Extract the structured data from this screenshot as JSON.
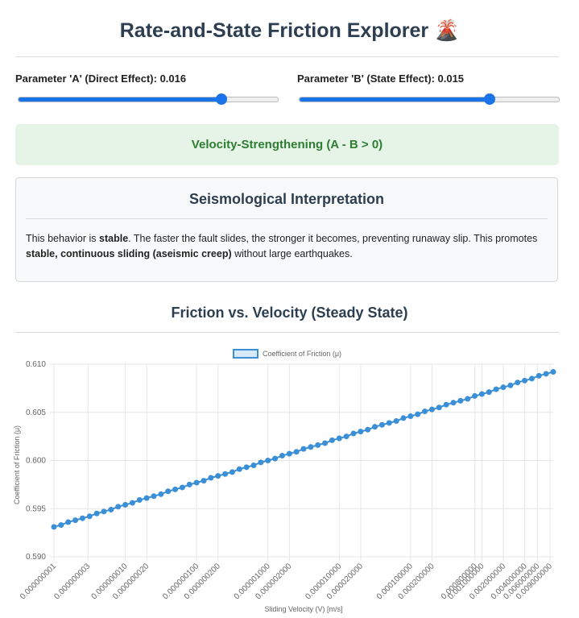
{
  "header": {
    "title": "Rate-and-State Friction Explorer 🌋"
  },
  "controls": [
    {
      "label": "Parameter 'A' (Direct Effect): 0.016"
    },
    {
      "label": "Parameter 'B' (State Effect): 0.015"
    }
  ],
  "regime": {
    "label": "Velocity-Strengthening (A - B > 0)"
  },
  "interpretation": {
    "heading": "Seismological Interpretation",
    "paragraph": [
      "This behavior is ",
      "stable",
      ". The faster the fault slides, the stronger it becomes, preventing runaway slip. This promotes ",
      "stable, continuous sliding (aseismic creep)",
      " without large earthquakes."
    ]
  },
  "chart_data": {
    "type": "line",
    "title": "Friction vs. Velocity (Steady State)",
    "x_label": "Sliding Velocity (V) [m/s]",
    "y_label": "Coefficient of Friction (μ)",
    "x_log": true,
    "grid": true,
    "legend": "top",
    "x": [
      1e-09,
      1.259e-09,
      1.585e-09,
      1.995e-09,
      2.512e-09,
      3.162e-09,
      3.981e-09,
      5.012e-09,
      6.31e-09,
      7.943e-09,
      1e-08,
      1.259e-08,
      1.585e-08,
      1.995e-08,
      2.512e-08,
      3.162e-08,
      3.981e-08,
      5.012e-08,
      6.31e-08,
      7.943e-08,
      1e-07,
      1.259e-07,
      1.585e-07,
      1.995e-07,
      2.512e-07,
      3.162e-07,
      3.981e-07,
      5.012e-07,
      6.31e-07,
      7.943e-07,
      1e-06,
      1.259e-06,
      1.585e-06,
      1.995e-06,
      2.512e-06,
      3.162e-06,
      3.981e-06,
      5.012e-06,
      6.31e-06,
      7.943e-06,
      1e-05,
      1.259e-05,
      1.585e-05,
      1.995e-05,
      2.512e-05,
      3.162e-05,
      3.981e-05,
      5.012e-05,
      6.31e-05,
      7.943e-05,
      0.0001,
      0.0001259,
      0.0001585,
      0.0001995,
      0.0002512,
      0.0003162,
      0.0003981,
      0.0005012,
      0.000631,
      0.0007943,
      0.001,
      0.001259,
      0.001585,
      0.001995,
      0.002512,
      0.003162,
      0.003981,
      0.005012,
      0.00631,
      0.007943,
      0.01
    ],
    "series": [
      {
        "name": "Coefficient of Friction (μ)",
        "color": "#3b8fd6",
        "values": [
          0.5931,
          0.5933,
          0.5936,
          0.5938,
          0.594,
          0.5942,
          0.5945,
          0.5947,
          0.5949,
          0.5952,
          0.5954,
          0.5956,
          0.5959,
          0.5961,
          0.5963,
          0.5965,
          0.5968,
          0.597,
          0.5972,
          0.5975,
          0.5977,
          0.5979,
          0.5982,
          0.5984,
          0.5986,
          0.5988,
          0.5991,
          0.5993,
          0.5995,
          0.5998,
          0.6,
          0.6002,
          0.6005,
          0.6007,
          0.6009,
          0.6012,
          0.6014,
          0.6016,
          0.6018,
          0.6021,
          0.6023,
          0.6025,
          0.6028,
          0.603,
          0.6032,
          0.6035,
          0.6037,
          0.6039,
          0.6041,
          0.6044,
          0.6046,
          0.6048,
          0.6051,
          0.6053,
          0.6055,
          0.6058,
          0.606,
          0.6062,
          0.6064,
          0.6067,
          0.6069,
          0.6071,
          0.6074,
          0.6076,
          0.6078,
          0.6081,
          0.6083,
          0.6085,
          0.6088,
          0.609,
          0.6092
        ]
      }
    ],
    "xlim": [
      1e-09,
      0.01
    ],
    "xticks": [
      {
        "value": 1e-09,
        "label": "0.000000001"
      },
      {
        "value": 3e-09,
        "label": "0.000000003"
      },
      {
        "value": 1e-08,
        "label": "0.000000010"
      },
      {
        "value": 2e-08,
        "label": "0.000000020"
      },
      {
        "value": 1e-07,
        "label": "0.000000100"
      },
      {
        "value": 2e-07,
        "label": "0.000000200"
      },
      {
        "value": 1e-06,
        "label": "0.000001000"
      },
      {
        "value": 2e-06,
        "label": "0.000002000"
      },
      {
        "value": 1e-05,
        "label": "0.000010000"
      },
      {
        "value": 2e-05,
        "label": "0.000020000"
      },
      {
        "value": 0.0001,
        "label": "0.000100000"
      },
      {
        "value": 0.0002,
        "label": "0.000200000"
      },
      {
        "value": 0.0008,
        "label": "0.000800000"
      },
      {
        "value": 0.001,
        "label": "0.001000000"
      },
      {
        "value": 0.002,
        "label": "0.002000000"
      },
      {
        "value": 0.004,
        "label": "0.004000000"
      },
      {
        "value": 0.006,
        "label": "0.006000000"
      },
      {
        "value": 0.009,
        "label": "0.009000000"
      }
    ],
    "ylim": [
      0.59,
      0.61
    ],
    "yticks": [
      {
        "value": 0.59,
        "label": "0.590"
      },
      {
        "value": 0.595,
        "label": "0.595"
      },
      {
        "value": 0.6,
        "label": "0.600"
      },
      {
        "value": 0.605,
        "label": "0.605"
      },
      {
        "value": 0.61,
        "label": "0.610"
      }
    ]
  }
}
